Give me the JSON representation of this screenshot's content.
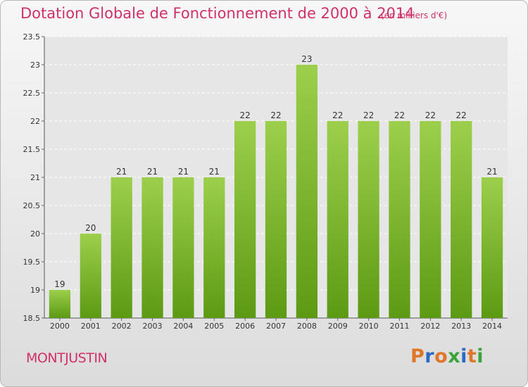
{
  "title": "Dotation Globale de Fonctionnement de 2000 à 2014",
  "unit_note": "(en milliers d'€)",
  "commune": "MONTJUSTIN",
  "logo": {
    "text": "Proxiti",
    "colors": [
      "#e0762a",
      "#2a6cc4",
      "#e0762a",
      "#3aa33a",
      "#2a6cc4",
      "#e0762a",
      "#3aa33a"
    ]
  },
  "colors": {
    "bar_top": "#9ccf4c",
    "bar_bottom": "#5d9a14",
    "accent": "#d0306a"
  },
  "chart_data": {
    "type": "bar",
    "title": "Dotation Globale de Fonctionnement de 2000 à 2014",
    "categories": [
      "2000",
      "2001",
      "2002",
      "2003",
      "2004",
      "2005",
      "2006",
      "2007",
      "2008",
      "2009",
      "2010",
      "2011",
      "2012",
      "2013",
      "2014"
    ],
    "values": [
      19,
      20,
      21,
      21,
      21,
      21,
      22,
      22,
      23,
      22,
      22,
      22,
      22,
      22,
      21
    ],
    "value_labels": [
      "19",
      "20",
      "21",
      "21",
      "21",
      "21",
      "22",
      "22",
      "23",
      "22",
      "22",
      "22",
      "22",
      "22",
      "21"
    ],
    "ylim": [
      18.5,
      23.5
    ],
    "yticks": [
      "18.5",
      "19",
      "19.5",
      "20",
      "20.5",
      "21",
      "21.5",
      "22",
      "22.5",
      "23",
      "23.5"
    ],
    "grid": true,
    "xlabel": "",
    "ylabel": ""
  }
}
